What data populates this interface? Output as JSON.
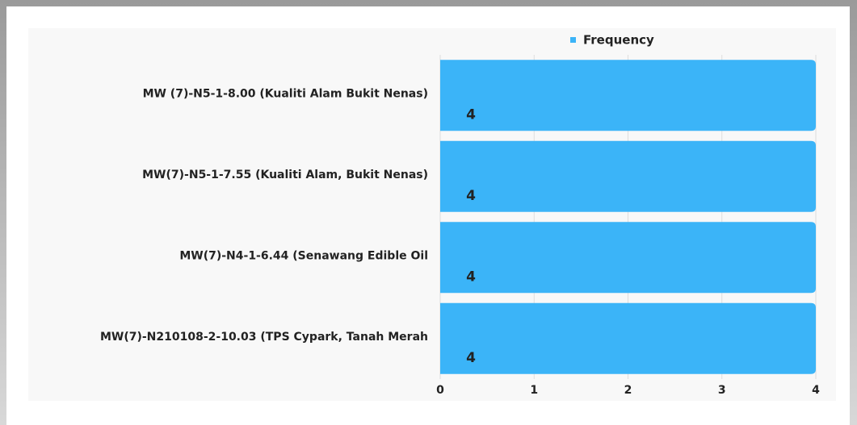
{
  "chart_data": {
    "type": "bar",
    "orientation": "horizontal",
    "categories": [
      "MW (7)-N5-1-8.00 (Kualiti Alam Bukit Nenas)",
      "MW(7)-N5-1-7.55 (Kualiti Alam, Bukit Nenas)",
      "MW(7)-N4-1-6.44 (Senawang Edible Oil",
      "MW(7)-N210108-2-10.03 (TPS Cypark, Tanah Merah"
    ],
    "series": [
      {
        "name": "Frequency",
        "color": "#3bb4f8",
        "values": [
          4,
          4,
          4,
          4
        ]
      }
    ],
    "xlim": [
      0,
      4
    ],
    "xticks": [
      0,
      1,
      2,
      3,
      4
    ],
    "grid": true,
    "legend": "top"
  }
}
